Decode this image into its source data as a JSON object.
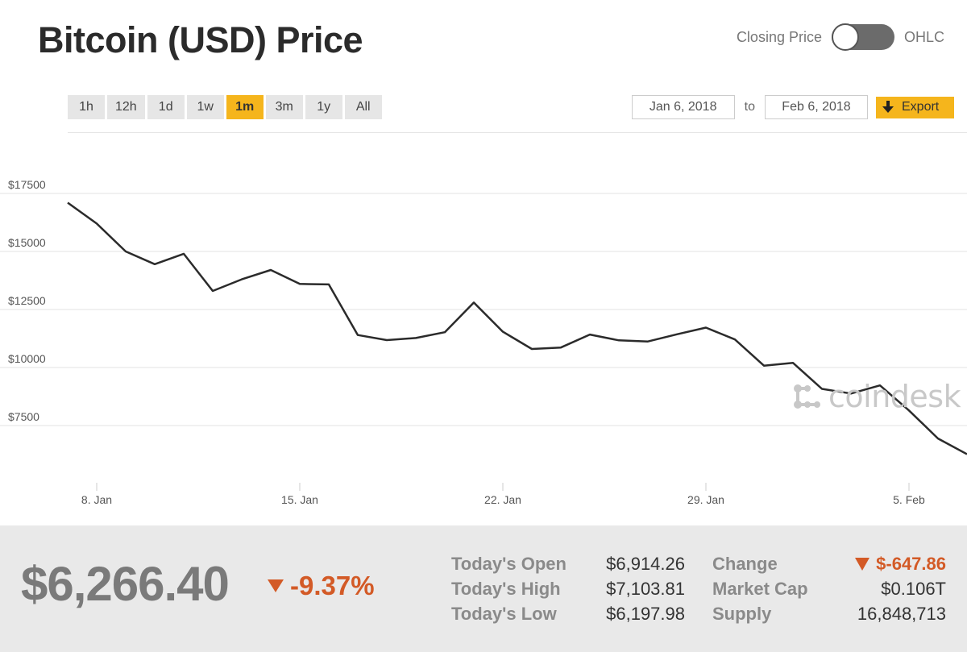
{
  "title": "Bitcoin (USD) Price",
  "toggle": {
    "left_label": "Closing Price",
    "right_label": "OHLC",
    "state": "Closing Price"
  },
  "range_buttons": [
    {
      "label": "1h",
      "active": false
    },
    {
      "label": "12h",
      "active": false
    },
    {
      "label": "1d",
      "active": false
    },
    {
      "label": "1w",
      "active": false
    },
    {
      "label": "1m",
      "active": true
    },
    {
      "label": "3m",
      "active": false
    },
    {
      "label": "1y",
      "active": false
    },
    {
      "label": "All",
      "active": false
    }
  ],
  "date_range": {
    "from": "Jan 6, 2018",
    "to_label": "to",
    "to": "Feb 6, 2018",
    "export_label": "Export"
  },
  "watermark": "coindesk",
  "colors": {
    "accent": "#f5b51c",
    "negative": "#d35a26",
    "line": "#2b2b2b"
  },
  "chart_data": {
    "type": "line",
    "title": "",
    "xlabel": "",
    "ylabel": "",
    "x_ticks": [
      "8. Jan",
      "15. Jan",
      "22. Jan",
      "29. Jan",
      "5. Feb"
    ],
    "y_ticks": [
      "$17500",
      "$15000",
      "$12500",
      "$10000",
      "$7500"
    ],
    "y_tick_values": [
      17500,
      15000,
      12500,
      10000,
      7500
    ],
    "ylim": [
      5000,
      20000
    ],
    "xlim": [
      "2018-01-07",
      "2018-02-07"
    ],
    "grid": true,
    "legend": "none",
    "series": [
      {
        "x": [
          "2018-01-07",
          "2018-01-08",
          "2018-01-09",
          "2018-01-10",
          "2018-01-11",
          "2018-01-12",
          "2018-01-13",
          "2018-01-14",
          "2018-01-15",
          "2018-01-16",
          "2018-01-17",
          "2018-01-18",
          "2018-01-19",
          "2018-01-20",
          "2018-01-21",
          "2018-01-22",
          "2018-01-23",
          "2018-01-24",
          "2018-01-25",
          "2018-01-26",
          "2018-01-27",
          "2018-01-28",
          "2018-01-29",
          "2018-01-30",
          "2018-01-31",
          "2018-02-01",
          "2018-02-02",
          "2018-02-03",
          "2018-02-04",
          "2018-02-05",
          "2018-02-06",
          "2018-02-07"
        ],
        "values": [
          17100,
          16200,
          15000,
          14450,
          14900,
          13300,
          13800,
          14200,
          13600,
          13580,
          11400,
          11180,
          11270,
          11520,
          12800,
          11540,
          10800,
          10860,
          11420,
          11170,
          11120,
          11430,
          11720,
          11210,
          10080,
          10200,
          9080,
          8880,
          9230,
          8150,
          6940,
          6266
        ]
      }
    ]
  },
  "footer": {
    "price": "$6,266.40",
    "pct_change": "-9.37%",
    "stats_left": [
      {
        "label": "Today's Open",
        "value": "$6,914.26"
      },
      {
        "label": "Today's High",
        "value": "$7,103.81"
      },
      {
        "label": "Today's Low",
        "value": "$6,197.98"
      }
    ],
    "stats_right": [
      {
        "label": "Change",
        "value": "$-647.86"
      },
      {
        "label": "Market Cap",
        "value": "$0.106T"
      },
      {
        "label": "Supply",
        "value": "16,848,713"
      }
    ]
  }
}
